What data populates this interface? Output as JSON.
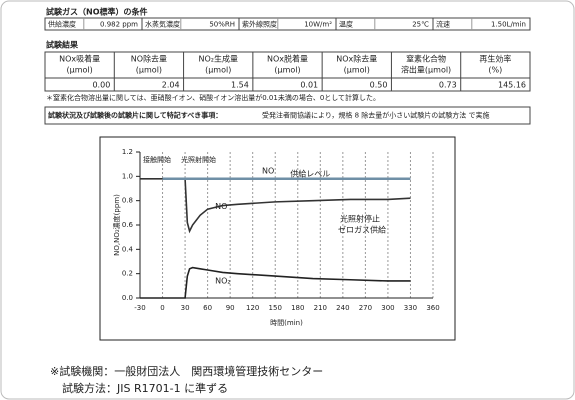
{
  "conditions": {
    "title": "試験ガス（NO標準）の条件",
    "items": [
      {
        "label": "供給濃度",
        "value": "0.982 ppm"
      },
      {
        "label": "水蒸気濃度",
        "value": "50%RH"
      },
      {
        "label": "紫外線照度",
        "value": "10W/m²"
      },
      {
        "label": "温度",
        "value": "25℃"
      },
      {
        "label": "流速",
        "value": "1.50L/min"
      }
    ]
  },
  "results": {
    "title": "試験結果",
    "headers": [
      [
        "NOx吸着量",
        "(μmol)"
      ],
      [
        "NO除去量",
        "(μmol)"
      ],
      [
        "NO₂生成量",
        "(μmol)"
      ],
      [
        "NOx脱着量",
        "(μmol)"
      ],
      [
        "NOx除去量",
        "(μmol)"
      ],
      [
        "窒素化合物",
        "溶出量(μmol)"
      ],
      [
        "再生効率",
        "(%)"
      ]
    ],
    "values": [
      "0.00",
      "2.04",
      "1.54",
      "0.01",
      "0.50",
      "0.73",
      "145.16"
    ],
    "note": "＊窒素化合物溶出量に関しては、亜硝酸イオン、硝酸イオン溶出量が0.01未満の場合、0として計算した。"
  },
  "remarks": {
    "label": "試験状況及び試験後の試験片に関して特記すべき事項：",
    "text": "受発注者間協議により，規格 8 除去量が小さい試験片の試験方法 で実施"
  },
  "chart_data": {
    "type": "line",
    "x_label": "時間(min)",
    "y_label": "NO,NO₂濃度(ppm)",
    "x": [
      -30,
      0,
      30,
      33,
      36,
      40,
      50,
      60,
      80,
      100,
      150,
      200,
      250,
      300,
      330
    ],
    "series": [
      {
        "name": "NO",
        "color": "#333333",
        "values": [
          0.98,
          0.98,
          0.98,
          0.62,
          0.55,
          0.6,
          0.68,
          0.73,
          0.76,
          0.77,
          0.79,
          0.8,
          0.81,
          0.81,
          0.82
        ]
      },
      {
        "name": "NO₂",
        "color": "#222222",
        "values": [
          0,
          0,
          0,
          0.18,
          0.24,
          0.25,
          0.24,
          0.23,
          0.21,
          0.2,
          0.18,
          0.16,
          0.15,
          0.14,
          0.14
        ]
      },
      {
        "name": "供給レベル",
        "color": "#6f8fa6",
        "values": [
          null,
          0.98,
          0.98,
          0.98,
          0.98,
          0.98,
          0.98,
          0.98,
          0.98,
          0.98,
          0.98,
          0.98,
          0.98,
          0.98,
          0.98
        ]
      }
    ],
    "annotations": [
      "接触開始",
      "光照射開始",
      "NO",
      "光照射停止",
      "ゼロガス供給"
    ],
    "xlim": [
      -30,
      360
    ],
    "ylim": [
      0,
      1.2
    ],
    "xticks": [
      -30,
      0,
      30,
      60,
      90,
      120,
      150,
      180,
      210,
      240,
      270,
      300,
      330,
      360
    ],
    "yticks": [
      {
        "value": 0,
        "label": "0.0"
      },
      0.2,
      0.4,
      0.6,
      0.8,
      {
        "value": 1,
        "label": "1.0"
      },
      1.2
    ],
    "grid": "x"
  },
  "footer": {
    "institution": "※試験機関：一般財団法人　関西環境管理技術センター",
    "method": "試験方法：JIS R1701-1 に準ずる"
  }
}
